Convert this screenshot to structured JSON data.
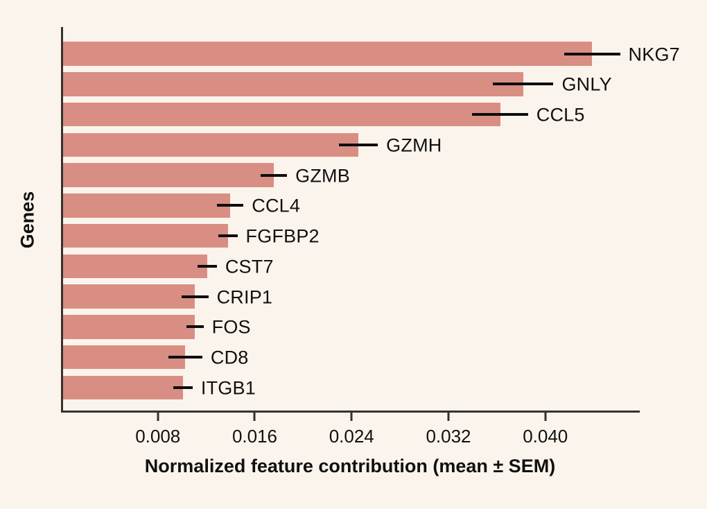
{
  "figure": {
    "background_color": "#fbf4ec",
    "bar_color": "#d98e83",
    "axis_color": "#35312b",
    "error_bar_color": "#0d0d0d",
    "text_color": "#101010"
  },
  "chart_data": {
    "type": "bar",
    "orientation": "horizontal",
    "title": "",
    "xlabel": "Normalized feature contribution (mean ± SEM)",
    "ylabel": "Genes",
    "xlim": [
      0,
      0.0478
    ],
    "x_ticks": [
      0.008,
      0.016,
      0.024,
      0.032,
      0.04
    ],
    "x_tick_labels": [
      "0.008",
      "0.016",
      "0.024",
      "0.032",
      "0.040"
    ],
    "grid": false,
    "legend": false,
    "error_bars": "SEM (horizontal, no caps)",
    "bar_labels_position": "right of error bar",
    "categories": [
      "NKG7",
      "GNLY",
      "CCL5",
      "GZMH",
      "GZMB",
      "CCL4",
      "FGFBP2",
      "CST7",
      "CRIP1",
      "FOS",
      "CD8",
      "ITGB1"
    ],
    "series": [
      {
        "name": "Normalized feature contribution (mean)",
        "values": [
          0.0437,
          0.038,
          0.0361,
          0.0244,
          0.0174,
          0.0138,
          0.0136,
          0.0119,
          0.0109,
          0.0109,
          0.0101,
          0.0099
        ],
        "sem": [
          0.0023,
          0.0025,
          0.0023,
          0.0016,
          0.0011,
          0.0011,
          0.0008,
          0.0008,
          0.0011,
          0.0007,
          0.0014,
          0.0008
        ]
      }
    ]
  }
}
